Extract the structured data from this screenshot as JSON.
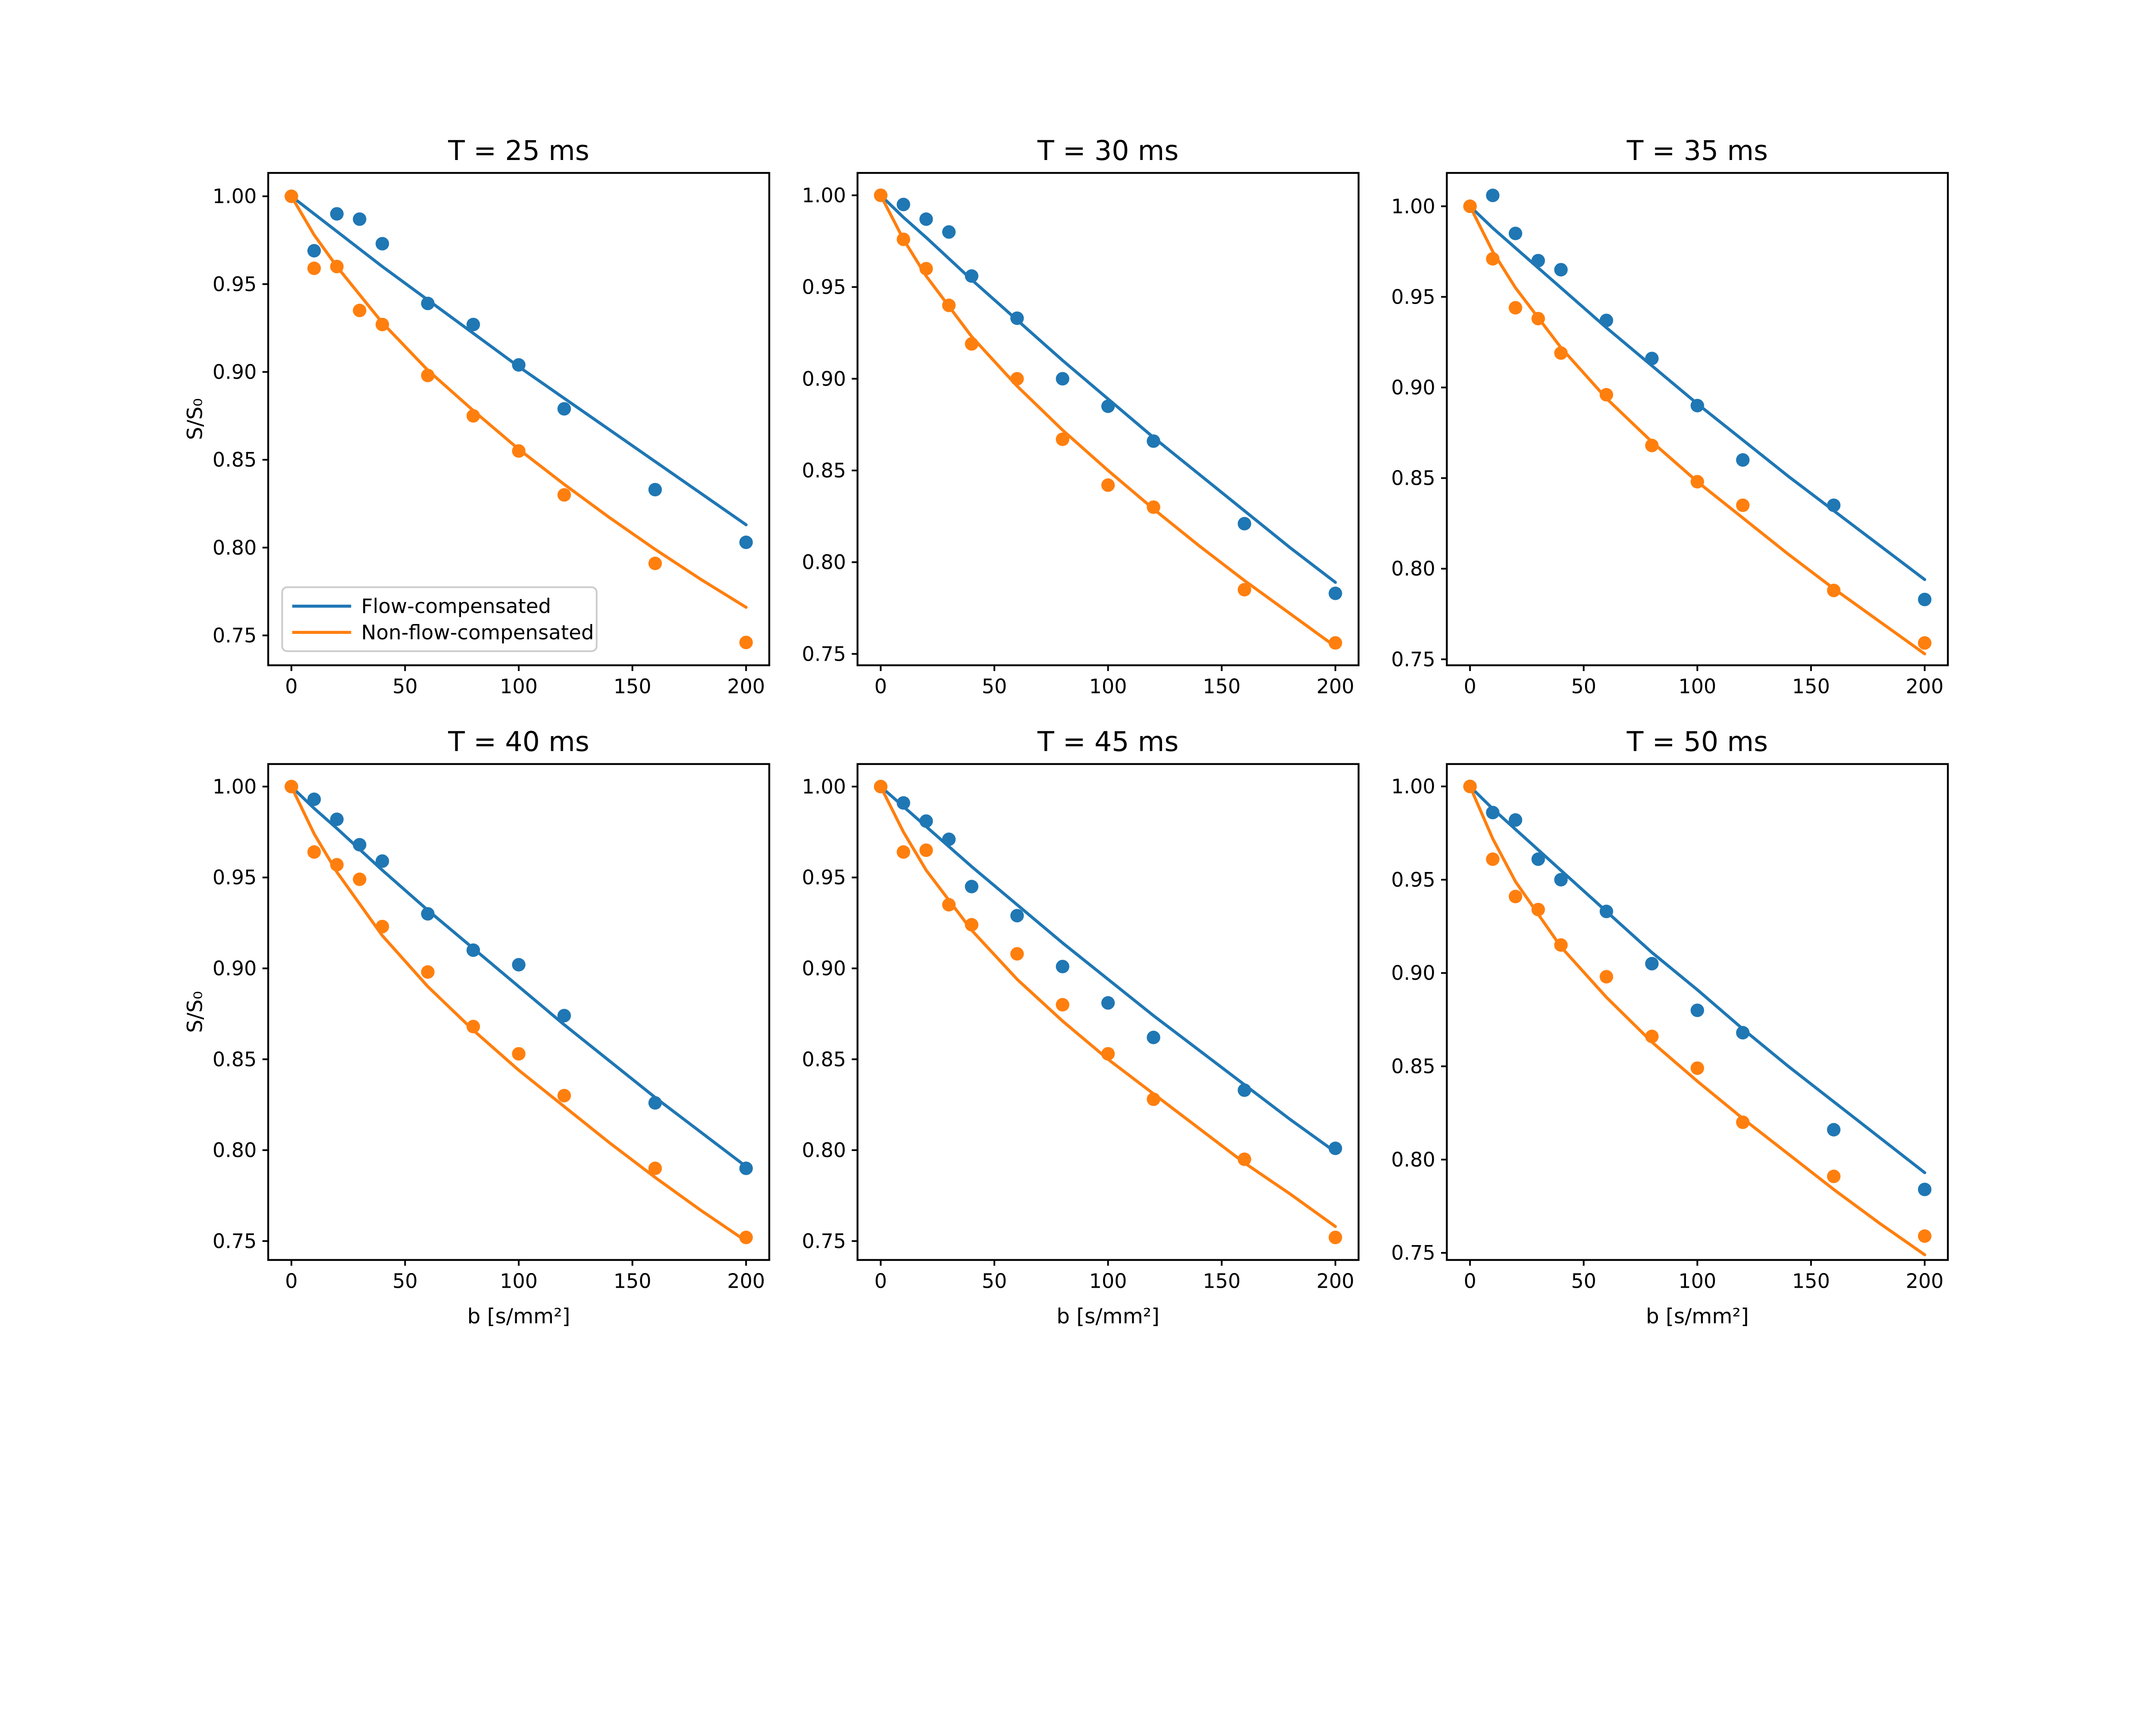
{
  "figure": {
    "background": "#ffffff",
    "rows": 2,
    "cols": 3
  },
  "colors": {
    "flow_compensated": "#1f77b4",
    "non_flow_compensated": "#ff7f0e",
    "text": "#000000",
    "spine": "#000000",
    "legend_border": "#cccccc",
    "legend_fill": "#ffffff"
  },
  "legend": {
    "entries": [
      {
        "label": "Flow-compensated",
        "color": "#1f77b4"
      },
      {
        "label": "Non-flow-compensated",
        "color": "#ff7f0e"
      }
    ],
    "location": "lower-left-of-first-subplot"
  },
  "axes_shared": {
    "xlabel": "b [s/mm²]",
    "ylabel": "S/S₀",
    "x_ticks": [
      0,
      50,
      100,
      150,
      200
    ],
    "x_tick_labels": [
      "0",
      "50",
      "100",
      "150",
      "200"
    ],
    "y_ticks": [
      1.0,
      0.95,
      0.9,
      0.85,
      0.8,
      0.75
    ],
    "y_tick_labels": [
      "1.00",
      "0.95",
      "0.90",
      "0.85",
      "0.80",
      "0.75"
    ],
    "xlim": [
      -10.2,
      210.2
    ],
    "grid": false
  },
  "chart_data": [
    {
      "type": "scatter",
      "title": "T = 25 ms",
      "xlabel": "",
      "ylabel": "S/S₀",
      "show_legend": true,
      "xlim": [
        -10.2,
        210.2
      ],
      "ylim": [
        0.733,
        1.0133
      ],
      "b_values": [
        0,
        10,
        20,
        30,
        40,
        60,
        80,
        100,
        120,
        160,
        200
      ],
      "fit_b": [
        0,
        10,
        20,
        40,
        60,
        80,
        100,
        120,
        140,
        160,
        180,
        200
      ],
      "series": [
        {
          "name": "Flow-compensated",
          "style": "scatter",
          "color": "#1f77b4",
          "values": [
            1.0,
            0.969,
            0.99,
            0.987,
            0.973,
            0.939,
            0.927,
            0.904,
            0.879,
            0.833,
            0.803
          ]
        },
        {
          "name": "Non-flow-compensated",
          "style": "scatter",
          "color": "#ff7f0e",
          "values": [
            1.0,
            0.959,
            0.96,
            0.935,
            0.927,
            0.898,
            0.875,
            0.855,
            0.83,
            0.791,
            0.746
          ]
        },
        {
          "name": "Flow-compensated fit",
          "style": "line",
          "color": "#1f77b4",
          "values": [
            1.0,
            0.99,
            0.98,
            0.96,
            0.941,
            0.922,
            0.903,
            0.885,
            0.867,
            0.849,
            0.831,
            0.813
          ]
        },
        {
          "name": "Non-flow-compensated fit",
          "style": "line",
          "color": "#ff7f0e",
          "values": [
            1.0,
            0.978,
            0.96,
            0.928,
            0.901,
            0.878,
            0.856,
            0.836,
            0.817,
            0.799,
            0.782,
            0.766
          ]
        }
      ]
    },
    {
      "type": "scatter",
      "title": "T = 30 ms",
      "xlabel": "",
      "ylabel": "",
      "show_legend": false,
      "xlim": [
        -10.2,
        210.2
      ],
      "ylim": [
        0.7438,
        1.0122
      ],
      "b_values": [
        0,
        10,
        20,
        30,
        40,
        60,
        80,
        100,
        120,
        160,
        200
      ],
      "fit_b": [
        0,
        10,
        20,
        40,
        60,
        80,
        100,
        120,
        140,
        160,
        180,
        200
      ],
      "series": [
        {
          "name": "Flow-compensated",
          "style": "scatter",
          "color": "#1f77b4",
          "values": [
            1.0,
            0.995,
            0.987,
            0.98,
            0.956,
            0.933,
            0.9,
            0.885,
            0.866,
            0.821,
            0.783
          ]
        },
        {
          "name": "Non-flow-compensated",
          "style": "scatter",
          "color": "#ff7f0e",
          "values": [
            1.0,
            0.976,
            0.96,
            0.94,
            0.919,
            0.9,
            0.867,
            0.842,
            0.83,
            0.785,
            0.756
          ]
        },
        {
          "name": "Flow-compensated fit",
          "style": "line",
          "color": "#1f77b4",
          "values": [
            1.0,
            0.988,
            0.977,
            0.954,
            0.932,
            0.91,
            0.889,
            0.868,
            0.848,
            0.828,
            0.808,
            0.789
          ]
        },
        {
          "name": "Non-flow-compensated fit",
          "style": "line",
          "color": "#ff7f0e",
          "values": [
            1.0,
            0.976,
            0.956,
            0.923,
            0.896,
            0.872,
            0.85,
            0.829,
            0.809,
            0.79,
            0.772,
            0.754
          ]
        }
      ]
    },
    {
      "type": "scatter",
      "title": "T = 35 ms",
      "xlabel": "",
      "ylabel": "",
      "show_legend": false,
      "xlim": [
        -10.2,
        210.2
      ],
      "ylim": [
        0.7467,
        1.0184
      ],
      "b_values": [
        0,
        10,
        20,
        30,
        40,
        60,
        80,
        100,
        120,
        160,
        200
      ],
      "fit_b": [
        0,
        10,
        20,
        40,
        60,
        80,
        100,
        120,
        140,
        160,
        180,
        200
      ],
      "series": [
        {
          "name": "Flow-compensated",
          "style": "scatter",
          "color": "#1f77b4",
          "values": [
            1.0,
            1.006,
            0.985,
            0.97,
            0.965,
            0.937,
            0.916,
            0.89,
            0.86,
            0.835,
            0.783
          ]
        },
        {
          "name": "Non-flow-compensated",
          "style": "scatter",
          "color": "#ff7f0e",
          "values": [
            1.0,
            0.971,
            0.944,
            0.938,
            0.919,
            0.896,
            0.868,
            0.848,
            0.835,
            0.788,
            0.759
          ]
        },
        {
          "name": "Flow-compensated fit",
          "style": "line",
          "color": "#1f77b4",
          "values": [
            1.0,
            0.988,
            0.977,
            0.955,
            0.933,
            0.912,
            0.891,
            0.871,
            0.851,
            0.832,
            0.813,
            0.794
          ]
        },
        {
          "name": "Non-flow-compensated fit",
          "style": "line",
          "color": "#ff7f0e",
          "values": [
            1.0,
            0.975,
            0.955,
            0.922,
            0.894,
            0.87,
            0.848,
            0.828,
            0.808,
            0.789,
            0.771,
            0.753
          ]
        }
      ]
    },
    {
      "type": "scatter",
      "title": "T = 40 ms",
      "xlabel": "b [s/mm²]",
      "ylabel": "S/S₀",
      "show_legend": false,
      "xlim": [
        -10.2,
        210.2
      ],
      "ylim": [
        0.7396,
        1.0124
      ],
      "b_values": [
        0,
        10,
        20,
        30,
        40,
        60,
        80,
        100,
        120,
        160,
        200
      ],
      "fit_b": [
        0,
        10,
        20,
        40,
        60,
        80,
        100,
        120,
        140,
        160,
        180,
        200
      ],
      "series": [
        {
          "name": "Flow-compensated",
          "style": "scatter",
          "color": "#1f77b4",
          "values": [
            1.0,
            0.993,
            0.982,
            0.968,
            0.959,
            0.93,
            0.91,
            0.902,
            0.874,
            0.826,
            0.79
          ]
        },
        {
          "name": "Non-flow-compensated",
          "style": "scatter",
          "color": "#ff7f0e",
          "values": [
            1.0,
            0.964,
            0.957,
            0.949,
            0.923,
            0.898,
            0.868,
            0.853,
            0.83,
            0.79,
            0.752
          ]
        },
        {
          "name": "Flow-compensated fit",
          "style": "line",
          "color": "#1f77b4",
          "values": [
            1.0,
            0.988,
            0.977,
            0.954,
            0.932,
            0.911,
            0.89,
            0.869,
            0.849,
            0.829,
            0.81,
            0.791
          ]
        },
        {
          "name": "Non-flow-compensated fit",
          "style": "line",
          "color": "#ff7f0e",
          "values": [
            1.0,
            0.974,
            0.953,
            0.918,
            0.89,
            0.866,
            0.844,
            0.824,
            0.804,
            0.785,
            0.767,
            0.75
          ]
        }
      ]
    },
    {
      "type": "scatter",
      "title": "T = 45 ms",
      "xlabel": "b [s/mm²]",
      "ylabel": "",
      "show_legend": false,
      "xlim": [
        -10.2,
        210.2
      ],
      "ylim": [
        0.7396,
        1.0124
      ],
      "b_values": [
        0,
        10,
        20,
        30,
        40,
        60,
        80,
        100,
        120,
        160,
        200
      ],
      "fit_b": [
        0,
        10,
        20,
        40,
        60,
        80,
        100,
        120,
        140,
        160,
        180,
        200
      ],
      "series": [
        {
          "name": "Flow-compensated",
          "style": "scatter",
          "color": "#1f77b4",
          "values": [
            1.0,
            0.991,
            0.981,
            0.971,
            0.945,
            0.929,
            0.901,
            0.881,
            0.862,
            0.833,
            0.801
          ]
        },
        {
          "name": "Non-flow-compensated",
          "style": "scatter",
          "color": "#ff7f0e",
          "values": [
            1.0,
            0.964,
            0.965,
            0.935,
            0.924,
            0.908,
            0.88,
            0.853,
            0.828,
            0.795,
            0.752
          ]
        },
        {
          "name": "Flow-compensated fit",
          "style": "line",
          "color": "#1f77b4",
          "values": [
            1.0,
            0.989,
            0.978,
            0.956,
            0.935,
            0.914,
            0.894,
            0.874,
            0.855,
            0.836,
            0.817,
            0.799
          ]
        },
        {
          "name": "Non-flow-compensated fit",
          "style": "line",
          "color": "#ff7f0e",
          "values": [
            1.0,
            0.975,
            0.954,
            0.921,
            0.894,
            0.871,
            0.85,
            0.831,
            0.812,
            0.793,
            0.776,
            0.758
          ]
        }
      ]
    },
    {
      "type": "scatter",
      "title": "T = 50 ms",
      "xlabel": "b [s/mm²]",
      "ylabel": "",
      "show_legend": false,
      "xlim": [
        -10.2,
        210.2
      ],
      "ylim": [
        0.7462,
        1.012
      ],
      "b_values": [
        0,
        10,
        20,
        30,
        40,
        60,
        80,
        100,
        120,
        160,
        200
      ],
      "fit_b": [
        0,
        10,
        20,
        40,
        60,
        80,
        100,
        120,
        140,
        160,
        180,
        200
      ],
      "series": [
        {
          "name": "Flow-compensated",
          "style": "scatter",
          "color": "#1f77b4",
          "values": [
            1.0,
            0.986,
            0.982,
            0.961,
            0.95,
            0.933,
            0.905,
            0.88,
            0.868,
            0.816,
            0.784
          ]
        },
        {
          "name": "Non-flow-compensated",
          "style": "scatter",
          "color": "#ff7f0e",
          "values": [
            1.0,
            0.961,
            0.941,
            0.934,
            0.915,
            0.898,
            0.866,
            0.849,
            0.82,
            0.791,
            0.759
          ]
        },
        {
          "name": "Flow-compensated fit",
          "style": "line",
          "color": "#1f77b4",
          "values": [
            1.0,
            0.988,
            0.977,
            0.955,
            0.933,
            0.911,
            0.891,
            0.87,
            0.85,
            0.831,
            0.812,
            0.793
          ]
        },
        {
          "name": "Non-flow-compensated fit",
          "style": "line",
          "color": "#ff7f0e",
          "values": [
            1.0,
            0.972,
            0.949,
            0.914,
            0.887,
            0.863,
            0.842,
            0.822,
            0.803,
            0.784,
            0.766,
            0.749
          ]
        }
      ]
    }
  ]
}
